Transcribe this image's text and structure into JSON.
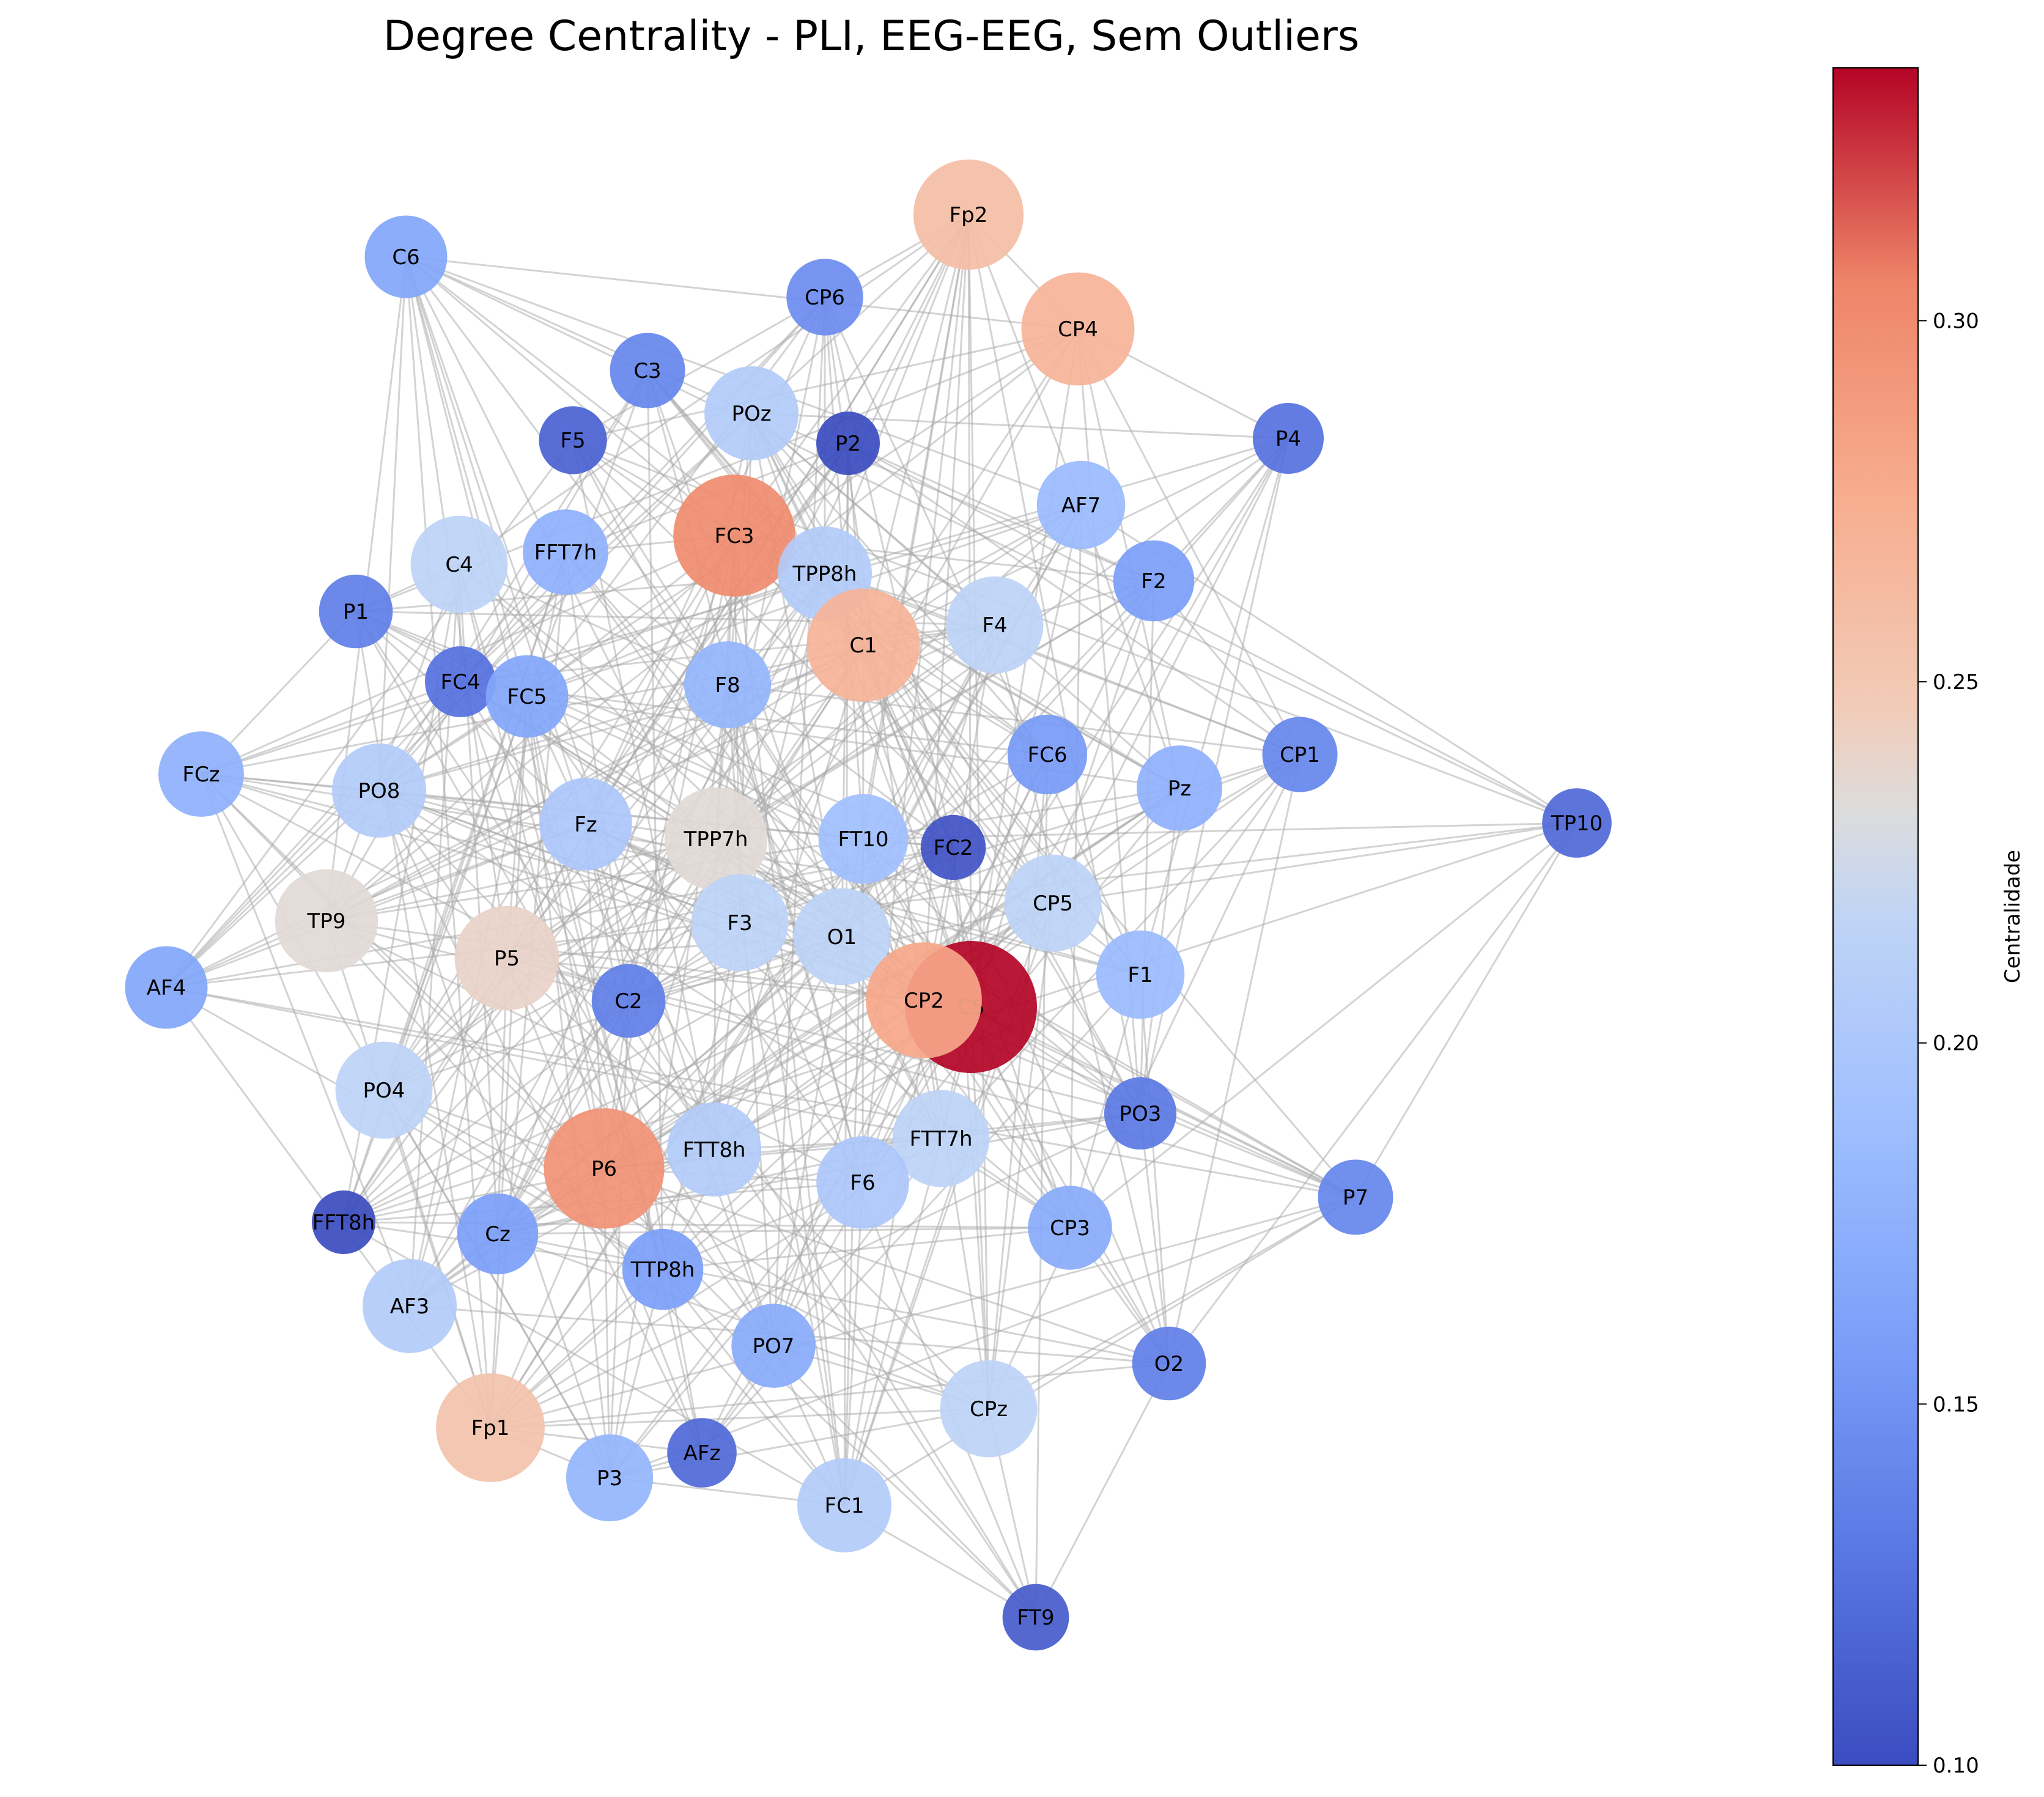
{
  "title": "Degree Centrality - PLI, EEG-EEG, Sem Outliers",
  "colorbar": {
    "label": "Centralidade",
    "colormap": "coolwarm",
    "min": 0.1,
    "max": 0.335,
    "ticks": [
      "0.10",
      "0.15",
      "0.20",
      "0.25",
      "0.30"
    ]
  },
  "chart_data": {
    "type": "network",
    "value_name": "Centralidade",
    "nodes": [
      {
        "label": "Fp2",
        "value": 0.26
      },
      {
        "label": "C6",
        "value": 0.165
      },
      {
        "label": "CP6",
        "value": 0.145
      },
      {
        "label": "CP4",
        "value": 0.27
      },
      {
        "label": "C3",
        "value": 0.14
      },
      {
        "label": "POz",
        "value": 0.205
      },
      {
        "label": "F5",
        "value": 0.115
      },
      {
        "label": "P2",
        "value": 0.1
      },
      {
        "label": "P4",
        "value": 0.125
      },
      {
        "label": "AF7",
        "value": 0.185
      },
      {
        "label": "C4",
        "value": 0.215
      },
      {
        "label": "FFT7h",
        "value": 0.175
      },
      {
        "label": "FC3",
        "value": 0.3
      },
      {
        "label": "TPP8h",
        "value": 0.205
      },
      {
        "label": "F2",
        "value": 0.16
      },
      {
        "label": "P1",
        "value": 0.135
      },
      {
        "label": "F4",
        "value": 0.215
      },
      {
        "label": "C1",
        "value": 0.27
      },
      {
        "label": "FC4",
        "value": 0.125
      },
      {
        "label": "FC5",
        "value": 0.165
      },
      {
        "label": "F8",
        "value": 0.18
      },
      {
        "label": "FCz",
        "value": 0.175
      },
      {
        "label": "FC6",
        "value": 0.155
      },
      {
        "label": "CP1",
        "value": 0.14
      },
      {
        "label": "Pz",
        "value": 0.175
      },
      {
        "label": "PO8",
        "value": 0.205
      },
      {
        "label": "Fz",
        "value": 0.2
      },
      {
        "label": "TPP7h",
        "value": 0.235
      },
      {
        "label": "FT10",
        "value": 0.19
      },
      {
        "label": "FC2",
        "value": 0.105
      },
      {
        "label": "TP10",
        "value": 0.12
      },
      {
        "label": "CP5",
        "value": 0.215
      },
      {
        "label": "TP9",
        "value": 0.235
      },
      {
        "label": "F3",
        "value": 0.215
      },
      {
        "label": "O1",
        "value": 0.215
      },
      {
        "label": "AF4",
        "value": 0.165
      },
      {
        "label": "P5",
        "value": 0.24
      },
      {
        "label": "F1",
        "value": 0.185
      },
      {
        "label": "C5",
        "value": 0.335
      },
      {
        "label": "CP2",
        "value": 0.28
      },
      {
        "label": "C2",
        "value": 0.135
      },
      {
        "label": "PO4",
        "value": 0.215
      },
      {
        "label": "PO3",
        "value": 0.13
      },
      {
        "label": "P6",
        "value": 0.295
      },
      {
        "label": "FTT8h",
        "value": 0.205
      },
      {
        "label": "FTT7h",
        "value": 0.215
      },
      {
        "label": "F6",
        "value": 0.2
      },
      {
        "label": "P7",
        "value": 0.14
      },
      {
        "label": "FFT8h",
        "value": 0.1
      },
      {
        "label": "CP3",
        "value": 0.17
      },
      {
        "label": "Cz",
        "value": 0.16
      },
      {
        "label": "TTP8h",
        "value": 0.16
      },
      {
        "label": "AF3",
        "value": 0.205
      },
      {
        "label": "PO7",
        "value": 0.17
      },
      {
        "label": "O2",
        "value": 0.135
      },
      {
        "label": "CPz",
        "value": 0.215
      },
      {
        "label": "Fp1",
        "value": 0.255
      },
      {
        "label": "AFz",
        "value": 0.12
      },
      {
        "label": "P3",
        "value": 0.18
      },
      {
        "label": "FC1",
        "value": 0.205
      },
      {
        "label": "FT9",
        "value": 0.11
      }
    ]
  }
}
